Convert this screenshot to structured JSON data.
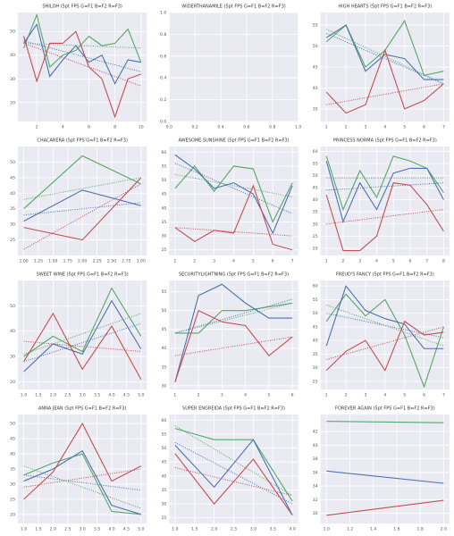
{
  "chart_data": [
    {
      "type": "line",
      "title": "SHILOH (5pt FPS G=F1 B=F2 R=F3)",
      "grid": true,
      "x": [
        1,
        2,
        3,
        4,
        5,
        6,
        7,
        8,
        9,
        10
      ],
      "xlim": [
        0.55,
        10.45
      ],
      "xticks": [
        2,
        4,
        6,
        8,
        10
      ],
      "ylim": [
        12,
        58
      ],
      "yticks": [
        20,
        30,
        40,
        50
      ],
      "series": [
        {
          "color": "#55a868",
          "values": [
            43,
            57,
            35,
            40,
            42,
            48,
            44,
            45,
            51,
            37
          ],
          "trend": [
            45,
            43
          ]
        },
        {
          "color": "#4c72b0",
          "values": [
            45,
            53,
            31,
            38,
            44,
            37,
            40,
            28,
            38,
            37
          ],
          "trend": [
            46,
            33
          ]
        },
        {
          "color": "#c44e52",
          "values": [
            48,
            29,
            45,
            45,
            50,
            35,
            30,
            14,
            30,
            32
          ],
          "trend": [
            45,
            27
          ]
        }
      ]
    },
    {
      "type": "line",
      "title": "WIDERTHANAMILE (5pt FPS G=F1 B=F2 R=F3)",
      "grid": true,
      "x": [],
      "xlim": [
        0,
        1
      ],
      "xticks": [
        {
          "value": 0,
          "label": "0.0"
        },
        0.2,
        0.4,
        0.6,
        0.8,
        {
          "value": 1,
          "label": "1.0"
        }
      ],
      "ylim": [
        0,
        1
      ],
      "yticks": [
        {
          "value": 0,
          "label": "0.0"
        },
        0.2,
        0.4,
        0.6,
        0.8,
        {
          "value": 1,
          "label": "1.0"
        }
      ],
      "series": []
    },
    {
      "type": "line",
      "title": "HIGH HEARTS (5pt FPS G=F1 B=F2 R=F3)",
      "grid": true,
      "x": [
        1,
        2,
        3,
        4,
        5,
        6,
        7
      ],
      "xlim": [
        0.7,
        7.3
      ],
      "xticks": [
        1,
        2,
        3,
        4,
        5,
        6,
        7
      ],
      "ylim": [
        32,
        58
      ],
      "yticks": [
        35,
        40,
        45,
        50,
        55
      ],
      "series": [
        {
          "color": "#55a868",
          "values": [
            51,
            55,
            45,
            49,
            56,
            43,
            44
          ],
          "trend": [
            54,
            41
          ]
        },
        {
          "color": "#4c72b0",
          "values": [
            52,
            55,
            44,
            48,
            47,
            42,
            42
          ],
          "trend": [
            53,
            41
          ]
        },
        {
          "color": "#c44e52",
          "values": [
            39,
            34,
            36,
            49,
            35,
            37,
            41
          ],
          "trend": [
            36,
            41
          ]
        }
      ]
    },
    {
      "type": "line",
      "title": "CHACARERA (5pt FPS G=F1 B=F2 R=F3)",
      "grid": true,
      "x": [
        1,
        2,
        3
      ],
      "xlim": [
        0.9,
        3.1
      ],
      "xticks": [
        {
          "value": 1,
          "label": "1.00"
        },
        1.25,
        {
          "value": 1.5,
          "label": "1.50"
        },
        1.75,
        {
          "value": 2,
          "label": "2.00"
        },
        2.25,
        {
          "value": 2.5,
          "label": "2.50"
        },
        2.75,
        {
          "value": 3,
          "label": "3.00"
        }
      ],
      "ylim": [
        20,
        55
      ],
      "yticks": [
        25,
        30,
        35,
        40,
        45,
        50
      ],
      "series": [
        {
          "color": "#55a868",
          "values": [
            35,
            52,
            43
          ],
          "trend": [
            38,
            45
          ]
        },
        {
          "color": "#4c72b0",
          "values": [
            31,
            41,
            36
          ],
          "trend": [
            33,
            37
          ]
        },
        {
          "color": "#c44e52",
          "values": [
            29,
            25,
            45
          ],
          "trend": [
            22,
            43
          ]
        }
      ]
    },
    {
      "type": "line",
      "title": "AWESOME SUNSHINE (5pt FPS G=F1 B=F2 R=F3)",
      "grid": true,
      "x": [
        1,
        2,
        3,
        4,
        5,
        6,
        7
      ],
      "xlim": [
        0.7,
        7.3
      ],
      "xticks": [
        1,
        2,
        3,
        4,
        5,
        6,
        7
      ],
      "ylim": [
        23,
        62
      ],
      "yticks": [
        25,
        30,
        35,
        40,
        45,
        50,
        55,
        60
      ],
      "series": [
        {
          "color": "#55a868",
          "values": [
            47,
            55,
            46,
            55,
            54,
            35,
            49
          ],
          "trend": [
            52,
            44
          ]
        },
        {
          "color": "#4c72b0",
          "values": [
            59,
            54,
            47,
            49,
            45,
            31,
            48
          ],
          "trend": [
            56,
            38
          ]
        },
        {
          "color": "#c44e52",
          "values": [
            33,
            28,
            32,
            31,
            48,
            27,
            25
          ],
          "trend": [
            33,
            30
          ]
        }
      ]
    },
    {
      "type": "line",
      "title": "PRINCESS NORMA (5pt FPS G=F1 B=F2 R=F3)",
      "grid": true,
      "x": [
        1,
        2,
        3,
        4,
        5,
        6,
        7,
        8
      ],
      "xlim": [
        0.65,
        8.35
      ],
      "xticks": [
        1,
        2,
        3,
        4,
        5,
        6,
        7,
        8
      ],
      "ylim": [
        17,
        62
      ],
      "yticks": [
        20,
        25,
        30,
        35,
        40,
        45,
        50,
        55,
        60
      ],
      "series": [
        {
          "color": "#55a868",
          "values": [
            58,
            36,
            52,
            41,
            58,
            56,
            53,
            43
          ],
          "trend": [
            49,
            49
          ]
        },
        {
          "color": "#4c72b0",
          "values": [
            56,
            31,
            47,
            36,
            51,
            53,
            53,
            40
          ],
          "trend": [
            44,
            47
          ]
        },
        {
          "color": "#c44e52",
          "values": [
            42,
            19,
            19,
            25,
            47,
            46,
            38,
            27
          ],
          "trend": [
            30,
            36
          ]
        }
      ]
    },
    {
      "type": "line",
      "title": "SWEET WINE (5pt FPS G=F1 B=F2 R=F3)",
      "grid": true,
      "x": [
        1,
        2,
        3,
        4,
        5
      ],
      "xlim": [
        0.8,
        5.2
      ],
      "xticks": [
        {
          "value": 1,
          "label": "1.0"
        },
        1.5,
        {
          "value": 2,
          "label": "2.0"
        },
        2.5,
        {
          "value": 3,
          "label": "3.0"
        },
        3.5,
        {
          "value": 4,
          "label": "4.0"
        },
        4.5,
        {
          "value": 5,
          "label": "5.0"
        }
      ],
      "ylim": [
        17,
        60
      ],
      "yticks": [
        20,
        30,
        40,
        50
      ],
      "series": [
        {
          "color": "#55a868",
          "values": [
            30,
            38,
            32,
            57,
            38
          ],
          "trend": [
            31,
            47
          ]
        },
        {
          "color": "#4c72b0",
          "values": [
            24,
            35,
            31,
            52,
            33
          ],
          "trend": [
            28,
            43
          ]
        },
        {
          "color": "#c44e52",
          "values": [
            28,
            47,
            25,
            42,
            21
          ],
          "trend": [
            36,
            32
          ]
        }
      ]
    },
    {
      "type": "line",
      "title": "SECURITYLIGHTNING (5pt FPS G=F1 B=F2 R=F3)",
      "grid": true,
      "x": [
        1,
        2,
        3,
        4,
        5,
        6
      ],
      "xlim": [
        0.75,
        6.25
      ],
      "xticks": [
        1,
        2,
        3,
        4,
        5,
        6
      ],
      "ylim": [
        29,
        58
      ],
      "yticks": [
        30,
        35,
        40,
        45,
        50,
        55
      ],
      "series": [
        {
          "color": "#55a868",
          "values": [
            44,
            44,
            50,
            50,
            51,
            52
          ],
          "trend": [
            44,
            52
          ]
        },
        {
          "color": "#4c72b0",
          "values": [
            31,
            54,
            57,
            52,
            48,
            48
          ],
          "trend": [
            44,
            53
          ]
        },
        {
          "color": "#c44e52",
          "values": [
            31,
            50,
            47,
            46,
            38,
            43
          ],
          "trend": [
            38,
            43
          ]
        }
      ]
    },
    {
      "type": "line",
      "title": "FREUD'S FANCY (5pt FPS G=F1 B=F2 R=F3)",
      "grid": true,
      "x": [
        1,
        2,
        3,
        4,
        5,
        6,
        7
      ],
      "xlim": [
        0.7,
        7.3
      ],
      "xticks": [
        1,
        2,
        3,
        4,
        5,
        6,
        7
      ],
      "ylim": [
        22,
        62
      ],
      "yticks": [
        25,
        30,
        35,
        40,
        45,
        50,
        55,
        60
      ],
      "series": [
        {
          "color": "#55a868",
          "values": [
            47,
            57,
            49,
            55,
            42,
            23,
            45
          ],
          "trend": [
            53,
            38
          ]
        },
        {
          "color": "#4c72b0",
          "values": [
            38,
            60,
            51,
            48,
            46,
            37,
            37
          ],
          "trend": [
            50,
            41
          ]
        },
        {
          "color": "#c44e52",
          "values": [
            29,
            36,
            40,
            29,
            47,
            42,
            43
          ],
          "trend": [
            33,
            45
          ]
        }
      ]
    },
    {
      "type": "line",
      "title": "ANNA JEAN (5pt FPS G=F1 B=F2 R=F3)",
      "grid": true,
      "x": [
        1,
        2,
        3,
        4,
        5
      ],
      "xlim": [
        0.8,
        5.2
      ],
      "xticks": [
        {
          "value": 1,
          "label": "1.0"
        },
        1.5,
        {
          "value": 2,
          "label": "2.0"
        },
        2.5,
        {
          "value": 3,
          "label": "3.0"
        },
        3.5,
        {
          "value": 4,
          "label": "4.0"
        },
        4.5,
        {
          "value": 5,
          "label": "5.0"
        }
      ],
      "ylim": [
        17,
        53
      ],
      "yticks": [
        20,
        25,
        30,
        35,
        40,
        45,
        50
      ],
      "series": [
        {
          "color": "#55a868",
          "values": [
            33,
            37,
            40,
            21,
            20
          ],
          "trend": [
            36,
            22
          ]
        },
        {
          "color": "#4c72b0",
          "values": [
            31,
            35,
            41,
            23,
            20
          ],
          "trend": [
            33,
            28
          ]
        },
        {
          "color": "#c44e52",
          "values": [
            25,
            34,
            50,
            31,
            36
          ],
          "trend": [
            29,
            35
          ]
        }
      ]
    },
    {
      "type": "line",
      "title": "SUPER ENGREIDA (5pt FPS G=F1 B=F2 R=F3)",
      "grid": true,
      "x": [
        1,
        2,
        3,
        4
      ],
      "xlim": [
        0.85,
        4.15
      ],
      "xticks": [
        {
          "value": 1,
          "label": "1.0"
        },
        1.5,
        {
          "value": 2,
          "label": "2.0"
        },
        2.5,
        {
          "value": 3,
          "label": "3.0"
        },
        3.5,
        {
          "value": 4,
          "label": "4.0"
        }
      ],
      "ylim": [
        23,
        62
      ],
      "yticks": [
        25,
        30,
        35,
        40,
        45,
        50,
        55,
        60
      ],
      "series": [
        {
          "color": "#55a868",
          "values": [
            57,
            53,
            53,
            31
          ],
          "trend": [
            58,
            33
          ]
        },
        {
          "color": "#4c72b0",
          "values": [
            51,
            36,
            53,
            26
          ],
          "trend": [
            52,
            30
          ]
        },
        {
          "color": "#c44e52",
          "values": [
            48,
            30,
            46,
            26
          ],
          "trend": [
            43,
            33
          ]
        }
      ]
    },
    {
      "type": "line",
      "title": "FOREVER AGAIN (5pt FPS G=F1 B=F2 R=F3)",
      "grid": true,
      "x": [
        1,
        2
      ],
      "xlim": [
        0.95,
        2.05
      ],
      "xticks": [
        {
          "value": 1,
          "label": "1.0"
        },
        1.2,
        1.4,
        1.6,
        1.8,
        {
          "value": 2,
          "label": "2.0"
        }
      ],
      "ylim": [
        28.5,
        44.5
      ],
      "yticks": [
        30,
        32,
        34,
        36,
        38,
        40,
        42
      ],
      "series": [
        {
          "color": "#55a868",
          "values": [
            43.5,
            43.3
          ]
        },
        {
          "color": "#4c72b0",
          "values": [
            36.2,
            34.4
          ]
        },
        {
          "color": "#c44e52",
          "values": [
            29.7,
            31.9
          ]
        }
      ]
    }
  ]
}
